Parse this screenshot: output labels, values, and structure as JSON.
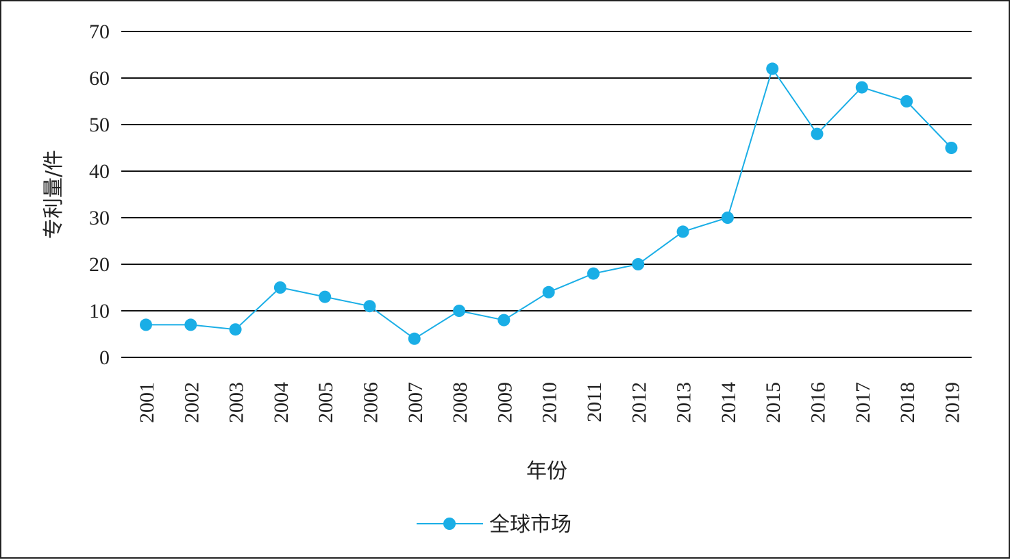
{
  "chart_data": {
    "type": "line",
    "categories": [
      "2001",
      "2002",
      "2003",
      "2004",
      "2005",
      "2006",
      "2007",
      "2008",
      "2009",
      "2010",
      "2011",
      "2012",
      "2013",
      "2014",
      "2015",
      "2016",
      "2017",
      "2018",
      "2019"
    ],
    "series": [
      {
        "name": "全球市场",
        "values": [
          7,
          7,
          6,
          15,
          13,
          11,
          4,
          10,
          8,
          14,
          18,
          20,
          27,
          30,
          62,
          48,
          58,
          55,
          45
        ],
        "color": "#1aaee6"
      }
    ],
    "xlabel": "年份",
    "ylabel": "专利量/件",
    "ylim": [
      0,
      70
    ],
    "yticks": [
      0,
      10,
      20,
      30,
      40,
      50,
      60,
      70
    ],
    "grid": "horizontal",
    "gridColor": "#111111",
    "legend": "bottom-center"
  }
}
